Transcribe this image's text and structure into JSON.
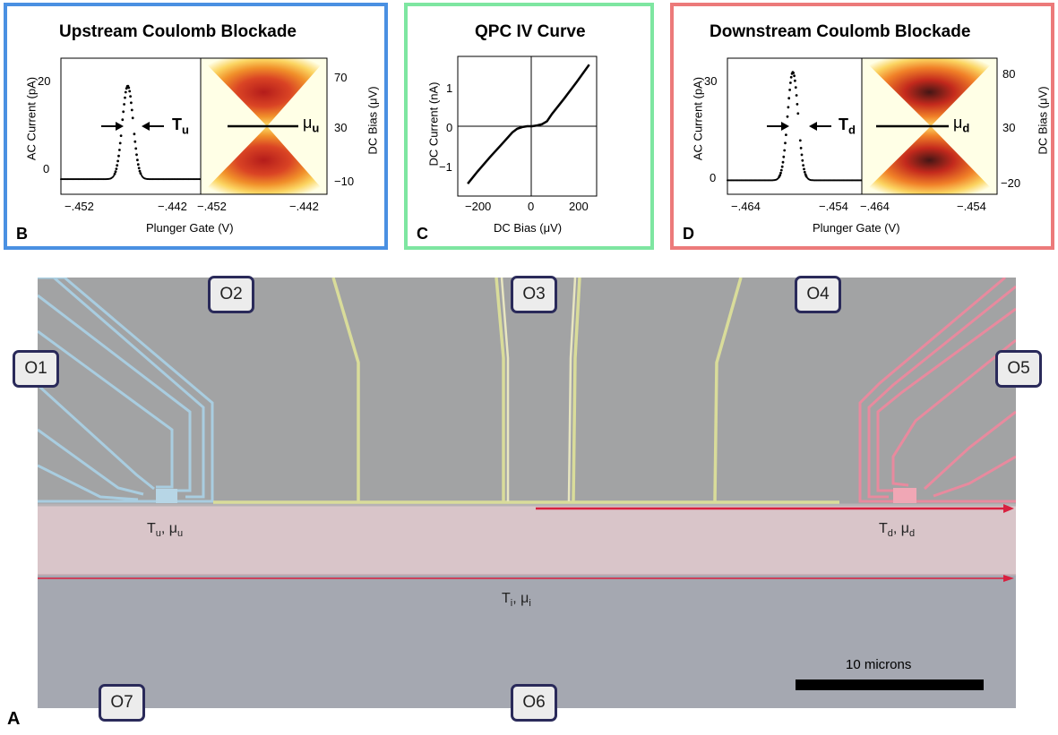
{
  "colors": {
    "upstream": "#4a90e2",
    "qpc": "#7ee6a1",
    "downstream": "#ec7a7a",
    "gate_blue": "#a9cde0",
    "gate_yellow": "#d9dc9a",
    "gate_pink": "#e88a9e",
    "arrow_red": "#d8203f",
    "edge_region": "#e8cfd2",
    "substrate": "#a7a9b3"
  },
  "panels": {
    "b": {
      "title": "Upstream Coulomb Blockade",
      "letter": "B",
      "ylabel": "AC Current (pA)",
      "xlabel": "Plunger Gate (V)",
      "right_ylabel": "DC Bias (μV)",
      "yticks": [
        "20",
        "0"
      ],
      "xticks_left": [
        "−.452",
        "−.442"
      ],
      "xticks_right": [
        "−.452",
        "−.442"
      ],
      "right_yticks": [
        "70",
        "30",
        "−10"
      ],
      "arrow_label": "T",
      "arrow_sub": "u",
      "mu_label": "μ",
      "mu_sub": "u"
    },
    "c": {
      "title": "QPC IV Curve",
      "letter": "C",
      "ylabel": "DC Current (nA)",
      "xlabel": "DC Bias (μV)",
      "yticks": [
        "1",
        "0",
        "−1"
      ],
      "xticks": [
        "−200",
        "0",
        "200"
      ]
    },
    "d": {
      "title": "Downstream Coulomb Blockade",
      "letter": "D",
      "ylabel": "AC Current (pA)",
      "xlabel": "Plunger Gate (V)",
      "right_ylabel": "DC Bias (μV)",
      "yticks": [
        "30",
        "0"
      ],
      "xticks_left": [
        "−.464",
        "−.454"
      ],
      "xticks_right": [
        "−.464",
        "−.454"
      ],
      "right_yticks": [
        "80",
        "30",
        "−20"
      ],
      "arrow_label": "T",
      "arrow_sub": "d",
      "mu_label": "μ",
      "mu_sub": "d"
    }
  },
  "chart_data": [
    {
      "type": "scatter",
      "panel": "B",
      "xlim": [
        -0.454,
        -0.4425
      ],
      "ylim": [
        -3,
        24
      ],
      "peak_center": -0.4485,
      "peak_height": 18.5
    },
    {
      "type": "heatmap",
      "panel": "B",
      "ylim": [
        -10,
        70
      ]
    },
    {
      "type": "line",
      "panel": "C",
      "xlim": [
        -280,
        280
      ],
      "ylim": [
        -1.7,
        1.7
      ],
      "x": [
        -240,
        -200,
        -150,
        -100,
        -60,
        -40,
        -20,
        0,
        20,
        40,
        60,
        80,
        100,
        150,
        200,
        250
      ],
      "y": [
        -1.4,
        -1.1,
        -0.75,
        -0.42,
        -0.15,
        -0.06,
        -0.02,
        0.0,
        0.0,
        0.02,
        0.05,
        0.12,
        0.3,
        0.68,
        1.08,
        1.5
      ]
    },
    {
      "type": "scatter",
      "panel": "D",
      "xlim": [
        -0.466,
        -0.4545
      ],
      "ylim": [
        -4,
        35
      ],
      "peak_center": -0.4604,
      "peak_height": 31
    },
    {
      "type": "heatmap",
      "panel": "D",
      "ylim": [
        -20,
        80
      ]
    }
  ],
  "sem": {
    "letter": "A",
    "ohmics": [
      "O1",
      "O2",
      "O3",
      "O4",
      "O5",
      "O6",
      "O7"
    ],
    "label_up": "T",
    "label_up_sub1": "u",
    "label_up_mu": ", μ",
    "label_up_sub2": "u",
    "label_down": "T",
    "label_down_sub1": "d",
    "label_down_mu": ", μ",
    "label_down_sub2": "d",
    "label_inner": "T",
    "label_inner_sub1": "i",
    "label_inner_mu": ", μ",
    "label_inner_sub2": "i",
    "scale_label": "10 microns"
  }
}
